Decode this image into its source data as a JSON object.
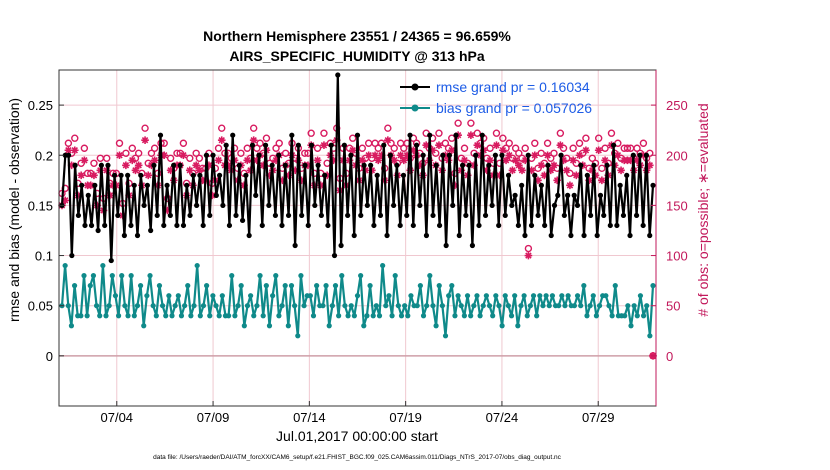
{
  "chart_data": {
    "type": "line",
    "title": "Northern Hemisphere 23551 / 24365 = 96.659%",
    "subtitle": "AIRS_SPECIFIC_HUMIDITY @ 313 hPa",
    "xlabel": "Jul.01,2017 00:00:00 start",
    "ylabel_left": "rmse and bias (model - observation)",
    "ylabel_right": "# of obs: o=possible; ∗=evaluated",
    "x_tick_labels": [
      "07/04",
      "07/09",
      "07/14",
      "07/19",
      "07/24",
      "07/29"
    ],
    "x_tick_days": [
      4,
      9,
      14,
      19,
      24,
      29
    ],
    "xlim_days": [
      1,
      32
    ],
    "ylim_left": [
      -0.05,
      0.285
    ],
    "ylim_right": [
      -50,
      285
    ],
    "y_ticks_left": [
      "0",
      "0.05",
      "0.1",
      "0.15",
      "0.2",
      "0.25"
    ],
    "y_tick_values_left": [
      0,
      0.05,
      0.1,
      0.15,
      0.2,
      0.25
    ],
    "y_ticks_right": [
      "0",
      "50",
      "100",
      "150",
      "200",
      "250"
    ],
    "y_tick_values_right": [
      0,
      50,
      100,
      150,
      200,
      250
    ],
    "grid": true,
    "legend_position": "top-right",
    "colors": {
      "rmse": "#000000",
      "bias": "#0f8a8a",
      "obs": "#d81b60",
      "right_axis": "#c2185b",
      "legend_text": "#1d5ce6",
      "zero_line": "#cf9fa9",
      "grid": "#f0c8d0"
    },
    "series": [
      {
        "name": "rmse grand pr = 0.16034",
        "color": "#000000",
        "axis": "left",
        "values": [
          0.15,
          0.2,
          0.2,
          0.1,
          0.19,
          0.14,
          0.17,
          0.13,
          0.16,
          0.13,
          0.17,
          0.125,
          0.19,
          0.13,
          0.19,
          0.095,
          0.18,
          0.14,
          0.18,
          0.12,
          0.18,
          0.13,
          0.17,
          0.12,
          0.18,
          0.15,
          0.17,
          0.125,
          0.19,
          0.14,
          0.22,
          0.13,
          0.17,
          0.14,
          0.19,
          0.13,
          0.19,
          0.13,
          0.17,
          0.14,
          0.18,
          0.15,
          0.18,
          0.13,
          0.2,
          0.14,
          0.2,
          0.16,
          0.18,
          0.15,
          0.21,
          0.13,
          0.22,
          0.14,
          0.19,
          0.135,
          0.18,
          0.12,
          0.21,
          0.16,
          0.2,
          0.13,
          0.21,
          0.15,
          0.19,
          0.14,
          0.2,
          0.13,
          0.19,
          0.14,
          0.22,
          0.11,
          0.21,
          0.14,
          0.19,
          0.13,
          0.21,
          0.15,
          0.19,
          0.14,
          0.18,
          0.13,
          0.21,
          0.1,
          0.28,
          0.11,
          0.21,
          0.14,
          0.2,
          0.12,
          0.22,
          0.14,
          0.19,
          0.15,
          0.19,
          0.13,
          0.18,
          0.14,
          0.21,
          0.12,
          0.2,
          0.15,
          0.19,
          0.13,
          0.18,
          0.14,
          0.22,
          0.13,
          0.21,
          0.15,
          0.2,
          0.12,
          0.22,
          0.14,
          0.19,
          0.13,
          0.2,
          0.11,
          0.2,
          0.15,
          0.22,
          0.12,
          0.19,
          0.14,
          0.19,
          0.11,
          0.2,
          0.13,
          0.22,
          0.14,
          0.19,
          0.15,
          0.2,
          0.13,
          0.2,
          0.14,
          0.18,
          0.15,
          0.16,
          0.13,
          0.17,
          0.12,
          0.2,
          0.13,
          0.18,
          0.14,
          0.17,
          0.13,
          0.19,
          0.12,
          0.15,
          0.16,
          0.2,
          0.14,
          0.16,
          0.12,
          0.16,
          0.15,
          0.19,
          0.12,
          0.18,
          0.14,
          0.19,
          0.12,
          0.16,
          0.14,
          0.19,
          0.13,
          0.21,
          0.13,
          0.17,
          0.14,
          0.18,
          0.12,
          0.2,
          0.14,
          0.2,
          0.13,
          0.2,
          0.12,
          0.17
        ]
      },
      {
        "name": "bias grand pr = 0.057026",
        "color": "#0f8a8a",
        "axis": "left",
        "values": [
          0.05,
          0.09,
          0.05,
          0.03,
          0.07,
          0.04,
          0.04,
          0.08,
          0.04,
          0.07,
          0.08,
          0.05,
          0.04,
          0.09,
          0.04,
          0.05,
          0.08,
          0.06,
          0.04,
          0.08,
          0.05,
          0.04,
          0.08,
          0.04,
          0.05,
          0.07,
          0.03,
          0.06,
          0.08,
          0.05,
          0.04,
          0.07,
          0.05,
          0.04,
          0.06,
          0.04,
          0.05,
          0.06,
          0.04,
          0.05,
          0.07,
          0.04,
          0.05,
          0.09,
          0.04,
          0.05,
          0.07,
          0.04,
          0.06,
          0.05,
          0.04,
          0.06,
          0.04,
          0.04,
          0.08,
          0.04,
          0.05,
          0.07,
          0.03,
          0.05,
          0.06,
          0.04,
          0.05,
          0.08,
          0.04,
          0.07,
          0.03,
          0.06,
          0.08,
          0.04,
          0.05,
          0.07,
          0.03,
          0.07,
          0.05,
          0.02,
          0.08,
          0.05,
          0.06,
          0.06,
          0.04,
          0.07,
          0.05,
          0.05,
          0.07,
          0.03,
          0.05,
          0.07,
          0.04,
          0.08,
          0.05,
          0.04,
          0.05,
          0.04,
          0.06,
          0.08,
          0.03,
          0.04,
          0.07,
          0.04,
          0.05,
          0.04,
          0.09,
          0.05,
          0.06,
          0.04,
          0.08,
          0.05,
          0.04,
          0.05,
          0.04,
          0.06,
          0.05,
          0.05,
          0.07,
          0.04,
          0.05,
          0.08,
          0.05,
          0.03,
          0.07,
          0.05,
          0.02,
          0.06,
          0.07,
          0.04,
          0.06,
          0.05,
          0.04,
          0.06,
          0.04,
          0.05,
          0.06,
          0.04,
          0.05,
          0.06,
          0.05,
          0.04,
          0.06,
          0.05,
          0.03,
          0.06,
          0.05,
          0.04,
          0.06,
          0.03,
          0.05,
          0.06,
          0.04,
          0.05,
          0.06,
          0.04,
          0.06,
          0.05,
          0.06,
          0.05,
          0.06,
          0.05,
          0.05,
          0.06,
          0.05,
          0.06,
          0.05,
          0.05,
          0.06,
          0.05,
          0.07,
          0.04,
          0.05,
          0.06,
          0.04,
          0.05,
          0.06,
          0.06,
          0.05,
          0.04,
          0.07,
          0.04,
          0.04,
          0.04,
          0.05,
          0.03,
          0.05,
          0.04,
          0.06,
          0.04,
          0.05,
          0.02,
          0.07
        ]
      },
      {
        "name": "obs evaluated",
        "color": "#d81b60",
        "axis": "right",
        "marker": "asterisk",
        "values": [
          150,
          155,
          205,
          190,
          205,
          160,
          180,
          195,
          170,
          170,
          180,
          150,
          185,
          145,
          185,
          160,
          170,
          170,
          200,
          140,
          190,
          160,
          195,
          185,
          190,
          170,
          215,
          180,
          190,
          195,
          170,
          200,
          200,
          145,
          185,
          175,
          190,
          190,
          200,
          160,
          185,
          170,
          190,
          185,
          175,
          175,
          190,
          160,
          175,
          195,
          215,
          190,
          190,
          185,
          195,
          175,
          190,
          170,
          195,
          185,
          215,
          195,
          200,
          190,
          205,
          180,
          185,
          195,
          200,
          175,
          190,
          180,
          200,
          185,
          195,
          175,
          190,
          190,
          210,
          170,
          195,
          170,
          210,
          180,
          200,
          195,
          215,
          165,
          195,
          170,
          195,
          205,
          190,
          175,
          195,
          185,
          200,
          185,
          200,
          195,
          200,
          175,
          215,
          200,
          195,
          180,
          200,
          195,
          200,
          185,
          205,
          200,
          190,
          180,
          210,
          195,
          205,
          190,
          210,
          185,
          200,
          195,
          205,
          170,
          220,
          185,
          195,
          180,
          220,
          190,
          210,
          200,
          205,
          185,
          195,
          180,
          210,
          180,
          205,
          195,
          200,
          185,
          195,
          190,
          185,
          195,
          100,
          185,
          200,
          175,
          190,
          180,
          200,
          185,
          190,
          175,
          210,
          195,
          185,
          170,
          195,
          180,
          200,
          190,
          205,
          175,
          185,
          180,
          205,
          175,
          195,
          180,
          210,
          190,
          200,
          185,
          195,
          195,
          195,
          185,
          195,
          190,
          200,
          185,
          190,
          0
        ]
      },
      {
        "name": "obs possible",
        "color": "#d81b60",
        "axis": "right",
        "marker": "circle",
        "values": [
          155,
          160,
          205,
          195,
          210,
          165,
          185,
          200,
          175,
          175,
          185,
          155,
          190,
          150,
          190,
          165,
          175,
          175,
          205,
          145,
          195,
          165,
          200,
          190,
          195,
          175,
          220,
          185,
          195,
          200,
          175,
          205,
          205,
          150,
          190,
          180,
          195,
          195,
          205,
          165,
          190,
          175,
          195,
          190,
          180,
          180,
          195,
          165,
          180,
          200,
          220,
          195,
          195,
          190,
          200,
          180,
          195,
          175,
          200,
          190,
          220,
          200,
          205,
          195,
          210,
          185,
          190,
          200,
          205,
          180,
          195,
          185,
          205,
          190,
          200,
          180,
          195,
          195,
          215,
          175,
          200,
          175,
          215,
          185,
          205,
          200,
          220,
          170,
          200,
          175,
          200,
          210,
          195,
          180,
          200,
          190,
          205,
          190,
          205,
          200,
          205,
          180,
          220,
          205,
          200,
          185,
          205,
          200,
          205,
          190,
          210,
          205,
          195,
          185,
          215,
          200,
          210,
          195,
          215,
          190,
          205,
          200,
          210,
          175,
          225,
          190,
          200,
          185,
          225,
          195,
          215,
          205,
          210,
          190,
          200,
          185,
          215,
          185,
          210,
          200,
          205,
          190,
          200,
          195,
          190,
          200,
          100,
          190,
          205,
          180,
          195,
          185,
          205,
          190,
          195,
          180,
          215,
          200,
          190,
          175,
          200,
          185,
          205,
          195,
          210,
          180,
          190,
          185,
          210,
          180,
          200,
          185,
          215,
          195,
          205,
          190,
          200,
          200,
          200,
          190,
          200,
          195,
          205,
          190,
          195,
          0
        ]
      }
    ]
  },
  "footnote": "data file: /Users/raeder/DAI/ATM_forcXX/CAM6_setup/f.e21.FHIST_BGC.f09_025.CAM6assim.011/Diags_NTrS_2017-07/obs_diag_output.nc"
}
